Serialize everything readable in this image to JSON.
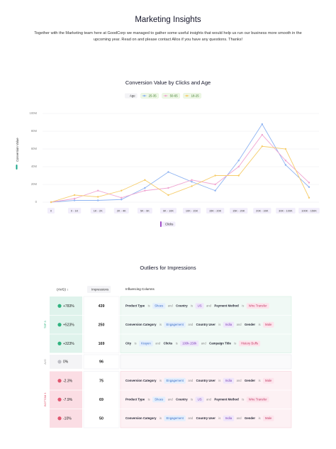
{
  "header": {
    "title": "Marketing Insights",
    "description": "Together with the Marketing team here at GoodCorp we managed to gather some useful insights that would help us run our business more smooth in the upcoming year. Read on and please contact Allos if you have any questions. Thanks!"
  },
  "chart_data": {
    "type": "line",
    "title": "Conversion Value by Clicks and Age",
    "y_label": "Conversion Value",
    "x_label": "Clicks",
    "legend_title": "Age",
    "categories": [
      "0",
      "0 - 1K",
      "1K - 2K",
      "2K - 4K",
      "5K - 9K",
      "9K - 10K",
      "10K - 15K",
      "15K - 20K",
      "15K - 20K",
      "20K - 30K",
      "30K - 100K",
      "100K - 150K"
    ],
    "series": [
      {
        "name": "25-35",
        "color": "#8fb4f2",
        "values": [
          0,
          2000000,
          2000000,
          3000000,
          16000000,
          34000000,
          23000000,
          13000000,
          47000000,
          88000000,
          42000000,
          17000000
        ]
      },
      {
        "name": "50-65",
        "color": "#f0a6d2",
        "values": [
          0,
          4000000,
          13000000,
          5000000,
          13000000,
          16000000,
          25000000,
          20000000,
          40000000,
          76000000,
          47000000,
          22000000
        ]
      },
      {
        "name": "18-25",
        "color": "#f6cd6b",
        "values": [
          0,
          8000000,
          6000000,
          13000000,
          25000000,
          8000000,
          18000000,
          30000000,
          30000000,
          63000000,
          60000000,
          5000000
        ]
      }
    ],
    "ylim": [
      0,
      100000000
    ],
    "yticks": [
      0,
      {
        "value": 20000000,
        "label": "20M"
      },
      {
        "value": 40000000,
        "label": "40M"
      },
      {
        "value": 60000000,
        "label": "60M"
      },
      {
        "value": 80000000,
        "label": "80M"
      },
      {
        "value": 100000000,
        "label": "100M"
      }
    ],
    "grid": true
  },
  "outliers": {
    "title": "Outliers for Impressions",
    "columns": [
      "(AVG) ↓",
      "Impressions",
      "Influencing Columns"
    ],
    "groups": [
      {
        "label": "TOP 3",
        "rows": [
          {
            "change": "+783%",
            "impressions": 439,
            "influencing": [
              "Product Type",
              "is",
              "Shoes",
              "and",
              "Country",
              "is",
              "US",
              "and",
              "Payment Method",
              "is",
              "Wire Transfer"
            ]
          },
          {
            "change": "+523%",
            "impressions": 250,
            "influencing": [
              "Conversion Category",
              "is",
              "Engagement",
              "and",
              "Country User",
              "is",
              "India",
              "and",
              "Gender",
              "is",
              "Male"
            ]
          },
          {
            "change": "+323%",
            "impressions": 169,
            "influencing": [
              "City",
              "is",
              "Krayen",
              "and",
              "Clicks",
              "is",
              "100k-150k",
              "and",
              "Campaign Title",
              "is",
              "History Buffs"
            ]
          }
        ]
      },
      {
        "label": "AVG",
        "rows": [
          {
            "change": "0%",
            "impressions": 96,
            "influencing": []
          }
        ]
      },
      {
        "label": "BOTTOM 3",
        "rows": [
          {
            "change": "-2.3%",
            "impressions": 75,
            "influencing": [
              "Conversion Category",
              "is",
              "Engagement",
              "and",
              "Country User",
              "is",
              "India",
              "and",
              "Gender",
              "is",
              "Male"
            ]
          },
          {
            "change": "-7.9%",
            "impressions": 69,
            "influencing": [
              "Product Type",
              "is",
              "Shoes",
              "and",
              "Country",
              "is",
              "US",
              "and",
              "Payment Method",
              "is",
              "Wire Transfer"
            ]
          },
          {
            "change": "-10%",
            "impressions": 50,
            "influencing": [
              "Conversion Category",
              "is",
              "Engagement",
              "and",
              "Country User",
              "is",
              "India",
              "and",
              "Gender",
              "is",
              "Male"
            ]
          }
        ]
      }
    ]
  }
}
